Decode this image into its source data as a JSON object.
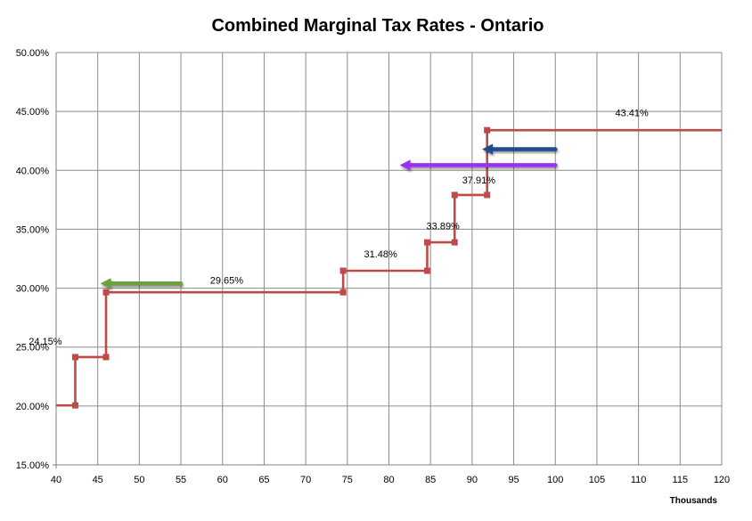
{
  "chart_data": {
    "type": "line",
    "title": "Combined Marginal Tax Rates - Ontario",
    "x_units_label": "Thousands",
    "xlim": [
      40,
      120
    ],
    "ylim": [
      15,
      50
    ],
    "x_ticks": [
      40,
      45,
      50,
      55,
      60,
      65,
      70,
      75,
      80,
      85,
      90,
      95,
      100,
      105,
      110,
      115,
      120
    ],
    "x_tick_labels": [
      "40",
      "45",
      "50",
      "55",
      "60",
      "65",
      "70",
      "75",
      "80",
      "85",
      "90",
      "95",
      "100",
      "105",
      "110",
      "115",
      "120"
    ],
    "y_ticks": [
      15,
      20,
      25,
      30,
      35,
      40,
      45,
      50
    ],
    "y_tick_labels": [
      "15.00%",
      "20.00%",
      "25.00%",
      "30.00%",
      "35.00%",
      "40.00%",
      "45.00%",
      "50.00%"
    ],
    "grid": true,
    "legend": "none",
    "series_color": "#be4b48",
    "series": [
      {
        "points": [
          {
            "x": 40,
            "y": 20.05
          },
          {
            "x": 42.3,
            "y": 20.05
          },
          {
            "x": 42.3,
            "y": 24.15
          },
          {
            "x": 46,
            "y": 24.15
          },
          {
            "x": 46,
            "y": 29.65
          },
          {
            "x": 74.5,
            "y": 29.65
          },
          {
            "x": 74.5,
            "y": 31.48
          },
          {
            "x": 84.6,
            "y": 31.48
          },
          {
            "x": 84.6,
            "y": 33.89
          },
          {
            "x": 87.9,
            "y": 33.89
          },
          {
            "x": 87.9,
            "y": 37.91
          },
          {
            "x": 91.8,
            "y": 37.91
          },
          {
            "x": 91.8,
            "y": 43.41
          },
          {
            "x": 120,
            "y": 43.41
          }
        ],
        "markers_x": [
          42.3,
          42.3,
          46,
          46,
          74.5,
          74.5,
          84.6,
          84.6,
          87.9,
          87.9,
          91.8,
          91.8
        ],
        "markers_y": [
          20.05,
          24.15,
          24.15,
          29.65,
          29.65,
          31.48,
          31.48,
          33.89,
          33.89,
          37.91,
          37.91,
          43.41
        ]
      }
    ],
    "data_labels": [
      {
        "text": "24.15%",
        "x": 38.7,
        "y": 25.2
      },
      {
        "text": "29.65%",
        "x": 60.5,
        "y": 30.4
      },
      {
        "text": "31.48%",
        "x": 79,
        "y": 32.6
      },
      {
        "text": "33.89%",
        "x": 86.5,
        "y": 35.0
      },
      {
        "text": "37.91%",
        "x": 90.8,
        "y": 38.9
      },
      {
        "text": "43.41%",
        "x": 109.2,
        "y": 44.6
      }
    ],
    "arrows": [
      {
        "color": "#6aa338",
        "x_from": 55,
        "x_to": 45.3,
        "y": 30.4
      },
      {
        "color": "#9933ee",
        "x_from": 100,
        "x_to": 81.3,
        "y": 40.45
      },
      {
        "color": "#1f4e8c",
        "x_from": 100,
        "x_to": 91.2,
        "y": 41.8
      }
    ]
  }
}
